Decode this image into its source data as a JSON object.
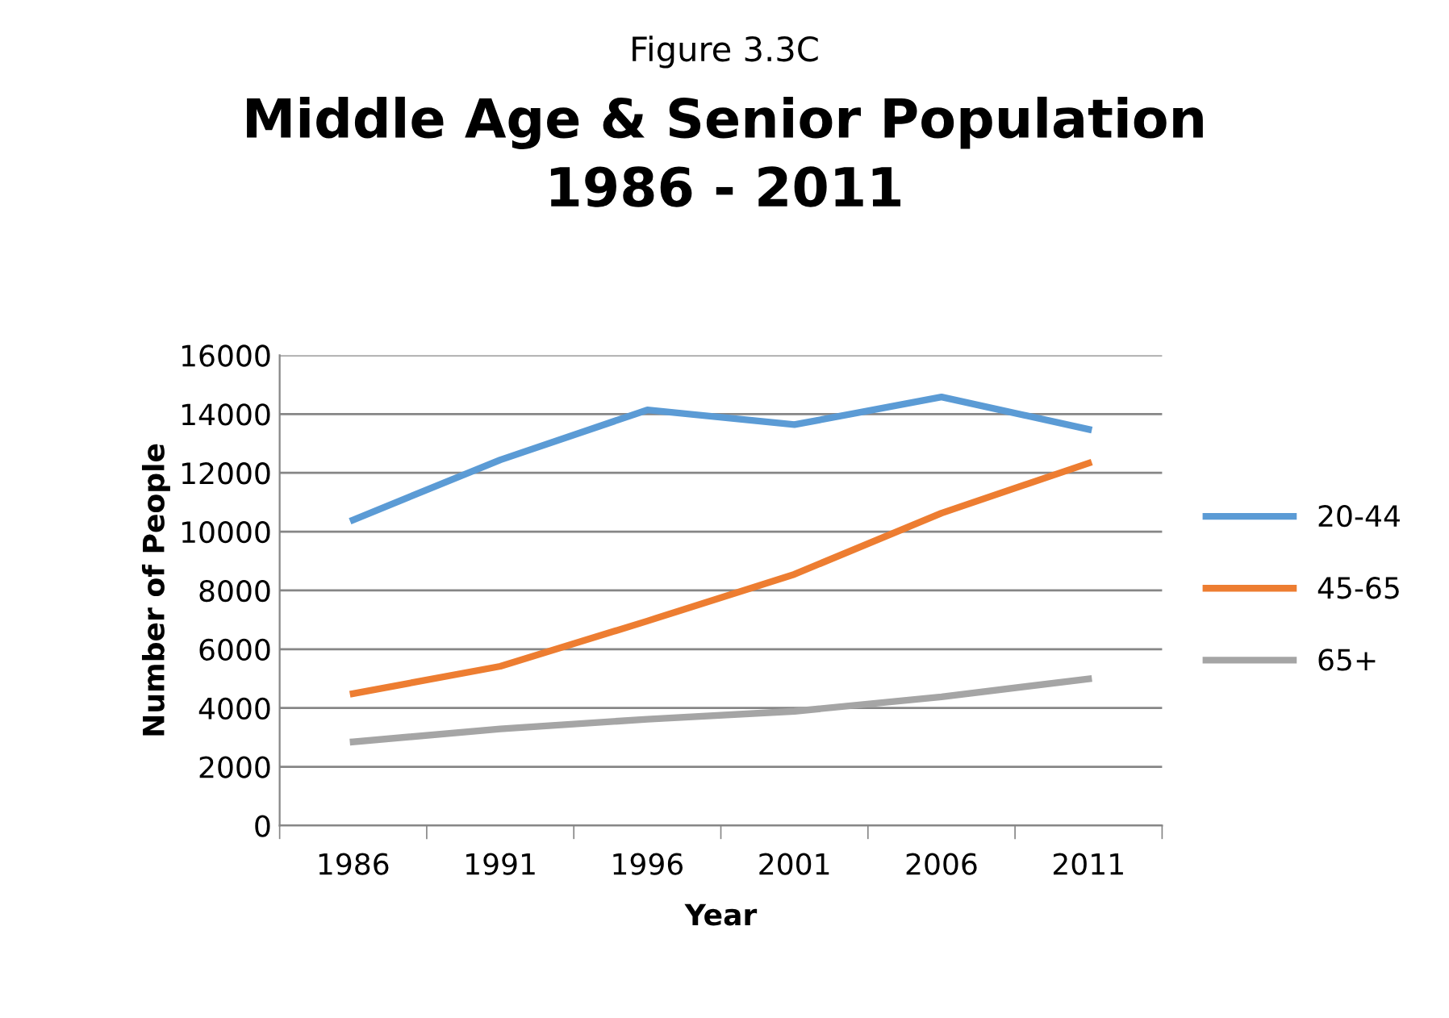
{
  "chart_data": {
    "type": "line",
    "subtitle": "Figure 3.3C",
    "title": "Middle Age & Senior Population\n1986 - 2011",
    "xlabel": "Year",
    "ylabel": "Number of People",
    "categories": [
      "1986",
      "1991",
      "1996",
      "2001",
      "2006",
      "2011"
    ],
    "series": [
      {
        "name": "20-44",
        "color": "#5b9bd5",
        "values": [
          10400,
          12440,
          14140,
          13640,
          14580,
          13480
        ]
      },
      {
        "name": "45-65",
        "color": "#ed7d31",
        "values": [
          4490,
          5420,
          6960,
          8550,
          10630,
          12330
        ]
      },
      {
        "name": "65+",
        "color": "#a5a5a5",
        "values": [
          2850,
          3290,
          3620,
          3890,
          4380,
          4990
        ]
      }
    ],
    "ylim": [
      0,
      16000
    ],
    "yticks": [
      0,
      2000,
      4000,
      6000,
      8000,
      10000,
      12000,
      14000,
      16000
    ],
    "grid": "y",
    "legend": "right",
    "marker": "none",
    "line_style": "solid"
  }
}
